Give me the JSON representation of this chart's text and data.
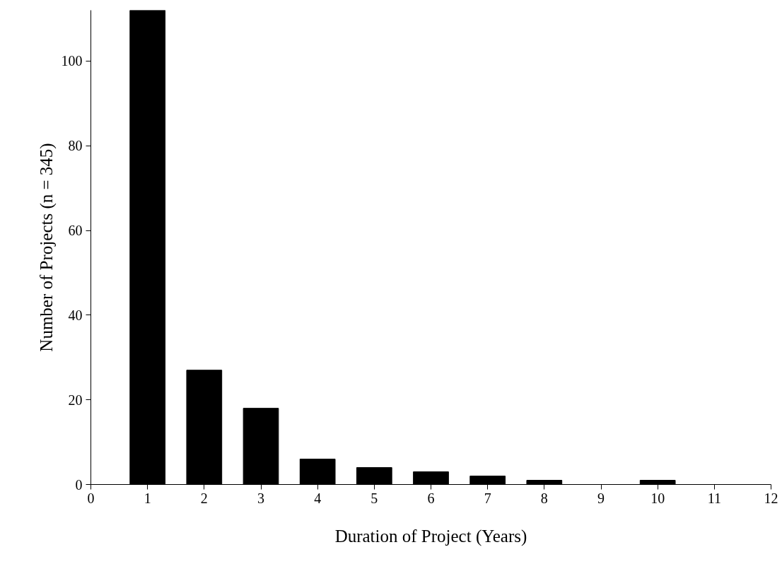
{
  "chart_data": {
    "type": "bar",
    "xlabel": "Duration of Project (Years)",
    "ylabel": "Number of Projects (n = 345)",
    "x": [
      1,
      2,
      3,
      4,
      5,
      6,
      7,
      8,
      9,
      10
    ],
    "values": [
      112,
      27,
      18,
      6,
      4,
      3,
      2,
      1,
      0,
      1
    ],
    "color": "#000000",
    "xlim": [
      0,
      12
    ],
    "xticks": [
      0,
      1,
      2,
      3,
      4,
      5,
      6,
      7,
      8,
      9,
      10,
      11,
      12
    ],
    "ylim": [
      0,
      112
    ],
    "yticks": [
      0,
      20,
      40,
      60,
      80,
      100
    ],
    "grid": false
  }
}
